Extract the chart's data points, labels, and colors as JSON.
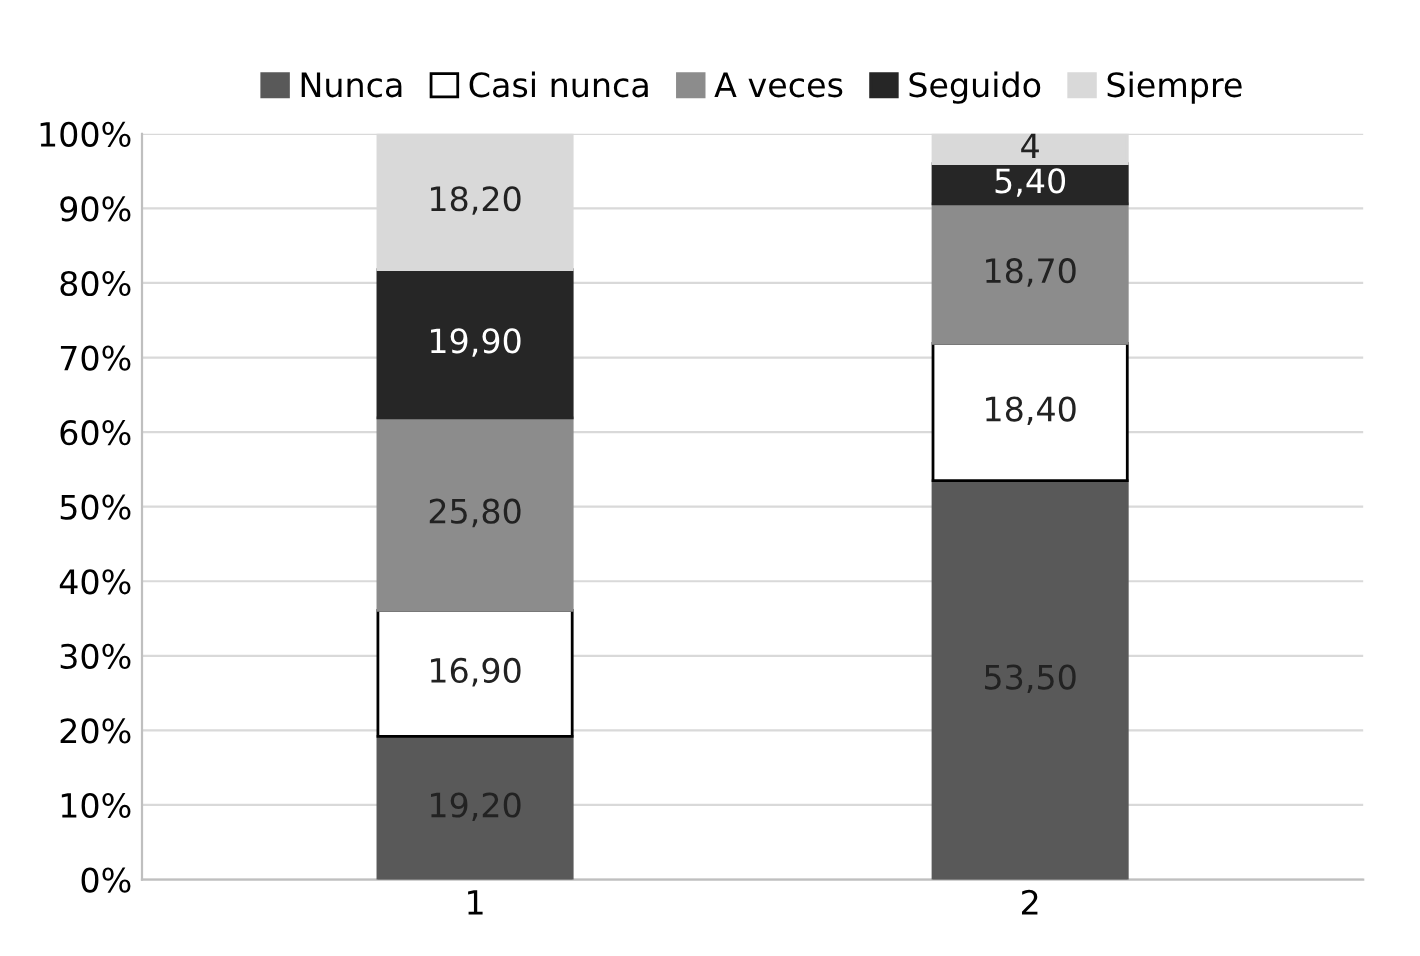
{
  "chart_data": {
    "type": "bar",
    "stacked": true,
    "categories": [
      "1",
      "2"
    ],
    "series": [
      {
        "name": "Nunca",
        "color": "#595959",
        "values": [
          19.2,
          53.5
        ],
        "value_labels": [
          "19,20",
          "53,50"
        ]
      },
      {
        "name": "Casi nunca",
        "color": "#ffffff",
        "values": [
          16.9,
          18.4
        ],
        "value_labels": [
          "16,90",
          "18,40"
        ]
      },
      {
        "name": "A veces",
        "color": "#8c8c8c",
        "values": [
          25.8,
          18.7
        ],
        "value_labels": [
          "25,80",
          "18,70"
        ]
      },
      {
        "name": "Seguido",
        "color": "#262626",
        "values": [
          19.9,
          5.4
        ],
        "value_labels": [
          "19,90",
          "5,40"
        ]
      },
      {
        "name": "Siempre",
        "color": "#d9d9d9",
        "values": [
          18.2,
          4
        ],
        "value_labels": [
          "18,20",
          "4"
        ]
      }
    ],
    "ylim": [
      0,
      100
    ],
    "yticks": [
      {
        "value": 0,
        "label": "0%"
      },
      {
        "value": 10,
        "label": "10%"
      },
      {
        "value": 20,
        "label": "20%"
      },
      {
        "value": 30,
        "label": "30%"
      },
      {
        "value": 40,
        "label": "40%"
      },
      {
        "value": 50,
        "label": "50%"
      },
      {
        "value": 60,
        "label": "60%"
      },
      {
        "value": 70,
        "label": "70%"
      },
      {
        "value": 80,
        "label": "80%"
      },
      {
        "value": 90,
        "label": "90%"
      },
      {
        "value": 100,
        "label": "100%"
      }
    ],
    "grid": "y",
    "legend": "top"
  }
}
